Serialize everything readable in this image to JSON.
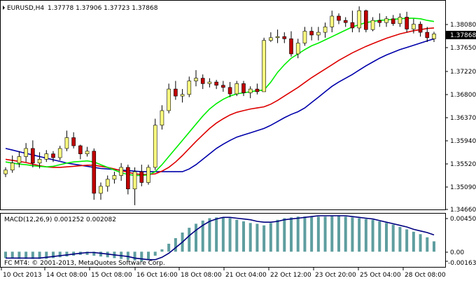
{
  "header": {
    "symbol_info": "EURUSD,H4",
    "quotes": "1.37778 1.37906 1.37723 1.37868"
  },
  "price_axis": {
    "ticks": [
      "1.38080",
      "1.37650",
      "1.37220",
      "1.36800",
      "1.36370",
      "1.35940",
      "1.35520",
      "1.35090",
      "1.34660"
    ],
    "current_price": "1.37868"
  },
  "macd": {
    "label": "MACD(12,26,9) 0.001252 0.002082",
    "ticks": [
      "0.004504",
      "0.00",
      "-0.001639"
    ],
    "copyright": "FC MT4: © 2001-2013, MetaQuotes Software Corp."
  },
  "time_axis": {
    "labels": [
      "10 Oct 2013",
      "14 Oct 08:00",
      "15 Oct 08:00",
      "16 Oct 16:00",
      "18 Oct 08:00",
      "21 Oct 04:00",
      "22 Oct 12:00",
      "23 Oct 20:00",
      "25 Oct 04:00",
      "28 Oct 08:00"
    ]
  },
  "colors": {
    "bull_candle": "#ffff80",
    "bear_candle": "#c00000",
    "ma_fast": "#00ee00",
    "ma_mid": "#dd0000",
    "ma_slow": "#0000aa",
    "macd_hist": "#5f9ea0",
    "macd_signal": "#000080",
    "price_box": "#000000"
  },
  "chart_data": {
    "type": "candlestick",
    "symbol": "EURUSD",
    "timeframe": "H4",
    "ylim": [
      1.3466,
      1.3842
    ],
    "candles": [
      [
        1.3528,
        1.354,
        1.3522,
        1.3535
      ],
      [
        1.3535,
        1.3562,
        1.353,
        1.3548
      ],
      [
        1.3548,
        1.357,
        1.354,
        1.356
      ],
      [
        1.356,
        1.3585,
        1.355,
        1.3575
      ],
      [
        1.3575,
        1.359,
        1.354,
        1.3548
      ],
      [
        1.3548,
        1.3568,
        1.3538,
        1.3555
      ],
      [
        1.3555,
        1.3572,
        1.355,
        1.3565
      ],
      [
        1.3565,
        1.357,
        1.355,
        1.3558
      ],
      [
        1.3558,
        1.358,
        1.3553,
        1.3575
      ],
      [
        1.3575,
        1.3608,
        1.357,
        1.3595
      ],
      [
        1.3595,
        1.3605,
        1.3575,
        1.358
      ],
      [
        1.358,
        1.3582,
        1.3555,
        1.3565
      ],
      [
        1.3565,
        1.3578,
        1.356,
        1.357
      ],
      [
        1.357,
        1.3575,
        1.348,
        1.3492
      ],
      [
        1.3492,
        1.3512,
        1.348,
        1.3505
      ],
      [
        1.3505,
        1.3525,
        1.3495,
        1.3518
      ],
      [
        1.3518,
        1.3532,
        1.351,
        1.3525
      ],
      [
        1.3525,
        1.3548,
        1.3515,
        1.354
      ],
      [
        1.354,
        1.3545,
        1.349,
        1.35
      ],
      [
        1.35,
        1.354,
        1.347,
        1.3532
      ],
      [
        1.3532,
        1.3545,
        1.3505,
        1.3512
      ],
      [
        1.3512,
        1.3545,
        1.3508,
        1.354
      ],
      [
        1.354,
        1.363,
        1.3535,
        1.3618
      ],
      [
        1.3618,
        1.3655,
        1.361,
        1.3645
      ],
      [
        1.3645,
        1.3695,
        1.364,
        1.3685
      ],
      [
        1.3685,
        1.37,
        1.3665,
        1.3672
      ],
      [
        1.3672,
        1.3685,
        1.366,
        1.3675
      ],
      [
        1.3675,
        1.3708,
        1.367,
        1.37
      ],
      [
        1.37,
        1.372,
        1.369,
        1.3705
      ],
      [
        1.3705,
        1.3712,
        1.3685,
        1.3695
      ],
      [
        1.3695,
        1.3705,
        1.3688,
        1.3698
      ],
      [
        1.3698,
        1.3702,
        1.3685,
        1.3692
      ],
      [
        1.3692,
        1.37,
        1.368,
        1.3688
      ],
      [
        1.3688,
        1.3698,
        1.367,
        1.3676
      ],
      [
        1.3676,
        1.37,
        1.3672,
        1.3695
      ],
      [
        1.3695,
        1.37,
        1.3672,
        1.3678
      ],
      [
        1.3678,
        1.369,
        1.3668,
        1.3685
      ],
      [
        1.3685,
        1.3695,
        1.3675,
        1.368
      ],
      [
        1.368,
        1.378,
        1.368,
        1.3775
      ],
      [
        1.3775,
        1.379,
        1.3772,
        1.378
      ],
      [
        1.378,
        1.3795,
        1.377,
        1.3782
      ],
      [
        1.3782,
        1.379,
        1.377,
        1.3778
      ],
      [
        1.3778,
        1.3792,
        1.3745,
        1.375
      ],
      [
        1.375,
        1.3778,
        1.3742,
        1.377
      ],
      [
        1.377,
        1.38,
        1.3765,
        1.3792
      ],
      [
        1.3792,
        1.38,
        1.3775,
        1.3785
      ],
      [
        1.3785,
        1.38,
        1.3775,
        1.379
      ],
      [
        1.379,
        1.3808,
        1.378,
        1.38
      ],
      [
        1.38,
        1.383,
        1.379,
        1.382
      ],
      [
        1.382,
        1.3825,
        1.3805,
        1.3812
      ],
      [
        1.3812,
        1.3818,
        1.38,
        1.3808
      ],
      [
        1.3808,
        1.383,
        1.379,
        1.3798
      ],
      [
        1.3798,
        1.3838,
        1.379,
        1.383
      ],
      [
        1.383,
        1.3832,
        1.379,
        1.3795
      ],
      [
        1.3795,
        1.3818,
        1.3792,
        1.3812
      ],
      [
        1.3812,
        1.3825,
        1.38,
        1.3808
      ],
      [
        1.3808,
        1.382,
        1.38,
        1.3815
      ],
      [
        1.3815,
        1.3822,
        1.3802,
        1.3806
      ],
      [
        1.3806,
        1.3825,
        1.38,
        1.3818
      ],
      [
        1.3818,
        1.3828,
        1.379,
        1.3796
      ],
      [
        1.3796,
        1.3815,
        1.3788,
        1.3805
      ],
      [
        1.3805,
        1.381,
        1.3782,
        1.379
      ],
      [
        1.379,
        1.38,
        1.3772,
        1.378
      ],
      [
        1.3778,
        1.3791,
        1.3772,
        1.3787
      ]
    ],
    "ma_fast": [
      1.355,
      1.3548,
      1.3546,
      1.3545,
      1.3543,
      1.3542,
      1.3541,
      1.3542,
      1.3545,
      1.3548,
      1.355,
      1.3551,
      1.3552,
      1.355,
      1.3545,
      1.354,
      1.3535,
      1.353,
      1.3527,
      1.3525,
      1.3525,
      1.3526,
      1.3532,
      1.3545,
      1.356,
      1.3575,
      1.359,
      1.3605,
      1.362,
      1.3635,
      1.3648,
      1.3658,
      1.3666,
      1.3672,
      1.3676,
      1.3678,
      1.368,
      1.3682,
      1.3683,
      1.3698,
      1.3716,
      1.373,
      1.3742,
      1.375,
      1.3758,
      1.3765,
      1.377,
      1.3776,
      1.3782,
      1.3788,
      1.3794,
      1.38,
      1.3804,
      1.3808,
      1.381,
      1.3812,
      1.3813,
      1.3814,
      1.3815,
      1.3816,
      1.3816,
      1.3815,
      1.3812,
      1.381
    ],
    "ma_mid": [
      1.3555,
      1.3553,
      1.3551,
      1.3549,
      1.3546,
      1.3543,
      1.3541,
      1.354,
      1.354,
      1.3541,
      1.3542,
      1.3543,
      1.3544,
      1.3544,
      1.3542,
      1.354,
      1.3537,
      1.3534,
      1.3531,
      1.3528,
      1.3527,
      1.3527,
      1.3528,
      1.3533,
      1.354,
      1.355,
      1.3562,
      1.3575,
      1.3588,
      1.36,
      1.3612,
      1.3622,
      1.363,
      1.3637,
      1.3642,
      1.3645,
      1.3648,
      1.365,
      1.3652,
      1.3657,
      1.3664,
      1.3672,
      1.368,
      1.3688,
      1.3697,
      1.3706,
      1.3714,
      1.3722,
      1.373,
      1.3738,
      1.3745,
      1.3752,
      1.3758,
      1.3764,
      1.3769,
      1.3774,
      1.3779,
      1.3783,
      1.3787,
      1.379,
      1.3793,
      1.3795,
      1.3797,
      1.3798
    ],
    "ma_slow": [
      1.3575,
      1.3572,
      1.3569,
      1.3566,
      1.3563,
      1.356,
      1.3557,
      1.3554,
      1.3551,
      1.3548,
      1.3546,
      1.3544,
      1.3542,
      1.354,
      1.3538,
      1.3537,
      1.3536,
      1.3535,
      1.3534,
      1.3533,
      1.3532,
      1.3532,
      1.3532,
      1.3532,
      1.3532,
      1.3532,
      1.3532,
      1.3537,
      1.3545,
      1.3555,
      1.3565,
      1.3575,
      1.3583,
      1.359,
      1.3596,
      1.36,
      1.3604,
      1.3608,
      1.3612,
      1.3618,
      1.3625,
      1.3632,
      1.3638,
      1.3643,
      1.365,
      1.366,
      1.367,
      1.368,
      1.369,
      1.3698,
      1.3705,
      1.3712,
      1.372,
      1.3728,
      1.3735,
      1.3742,
      1.3748,
      1.3753,
      1.3758,
      1.3762,
      1.3766,
      1.377,
      1.3774,
      1.3778
    ],
    "macd_ylim": [
      -0.001639,
      0.004504
    ],
    "macd_hist": [
      -0.0008,
      -0.0008,
      -0.0009,
      -0.0009,
      -0.0009,
      -0.0009,
      -0.0009,
      -0.0008,
      -0.0007,
      -0.0006,
      -0.0005,
      -0.0004,
      -0.0004,
      -0.0005,
      -0.0006,
      -0.0007,
      -0.0008,
      -0.0009,
      -0.001,
      -0.0011,
      -0.0012,
      -0.001,
      -0.0005,
      0.0003,
      0.001,
      0.0017,
      0.0024,
      0.003,
      0.0035,
      0.0039,
      0.0042,
      0.0043,
      0.0043,
      0.0042,
      0.004,
      0.0038,
      0.0036,
      0.0035,
      0.0033,
      0.0036,
      0.004,
      0.0042,
      0.0043,
      0.0044,
      0.0044,
      0.0044,
      0.0044,
      0.0044,
      0.0045,
      0.0045,
      0.0044,
      0.0043,
      0.0042,
      0.0041,
      0.004,
      0.0038,
      0.0036,
      0.0034,
      0.0031,
      0.0028,
      0.0025,
      0.0022,
      0.0018,
      0.0013
    ],
    "macd_signal": [
      -0.0008,
      -0.0008,
      -0.0008,
      -0.0008,
      -0.0008,
      -0.0008,
      -0.0007,
      -0.0006,
      -0.0005,
      -0.0004,
      -0.0003,
      -0.0002,
      -0.0001,
      -0.0001,
      -0.0002,
      -0.0003,
      -0.0004,
      -0.0005,
      -0.0006,
      -0.0008,
      -0.0009,
      -0.001,
      -0.001,
      -0.0007,
      -0.0002,
      0.0005,
      0.0012,
      0.002,
      0.0027,
      0.0033,
      0.0038,
      0.0041,
      0.0043,
      0.0043,
      0.0042,
      0.0041,
      0.004,
      0.0038,
      0.0037,
      0.0037,
      0.0038,
      0.004,
      0.0041,
      0.0042,
      0.0043,
      0.0044,
      0.0045,
      0.0045,
      0.0045,
      0.0045,
      0.0045,
      0.0044,
      0.0043,
      0.0042,
      0.0041,
      0.0039,
      0.0037,
      0.0035,
      0.0033,
      0.0031,
      0.0028,
      0.0026,
      0.0024,
      0.0021
    ]
  }
}
